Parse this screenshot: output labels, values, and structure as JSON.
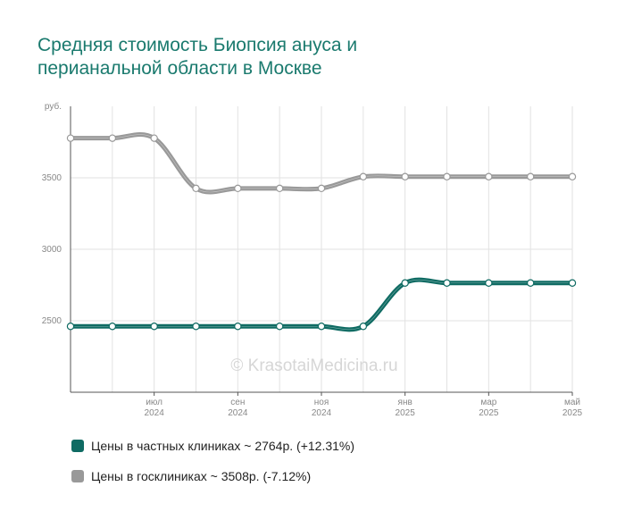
{
  "title_lines": [
    "Средняя стоимость Биопсия ануса и",
    "перианальной области в Москве"
  ],
  "watermark": "© KrasotaiMedicina.ru",
  "chart_data": {
    "type": "line",
    "ylabel": "руб.",
    "ylim": [
      2000,
      4000
    ],
    "yticks": [
      2500,
      3000,
      3500
    ],
    "x": [
      "2024-05",
      "2024-06",
      "2024-07",
      "2024-08",
      "2024-09",
      "2024-10",
      "2024-11",
      "2024-12",
      "2025-01",
      "2025-02",
      "2025-03",
      "2025-04",
      "2025-05"
    ],
    "xtick_labels": [
      {
        "x": "2024-07",
        "month": "июл",
        "year": "2024"
      },
      {
        "x": "2024-09",
        "month": "сен",
        "year": "2024"
      },
      {
        "x": "2024-11",
        "month": "ноя",
        "year": "2024"
      },
      {
        "x": "2025-01",
        "month": "янв",
        "year": "2025"
      },
      {
        "x": "2025-03",
        "month": "мар",
        "year": "2025"
      },
      {
        "x": "2025-05",
        "month": "май",
        "year": "2025"
      }
    ],
    "series": [
      {
        "name": "Цены в госклиниках ~ 3508р. (-7.12%)",
        "color": "#999999",
        "values": [
          3777,
          3777,
          3777,
          3426,
          3426,
          3426,
          3426,
          3508,
          3508,
          3508,
          3508,
          3508,
          3508
        ]
      },
      {
        "name": "Цены в частных клиниках ~ 2764р. (+12.31%)",
        "color": "#0f6b63",
        "values": [
          2461,
          2461,
          2461,
          2461,
          2461,
          2461,
          2461,
          2461,
          2764,
          2764,
          2764,
          2764,
          2764
        ]
      }
    ],
    "grid": true,
    "legend_position": "bottom"
  }
}
